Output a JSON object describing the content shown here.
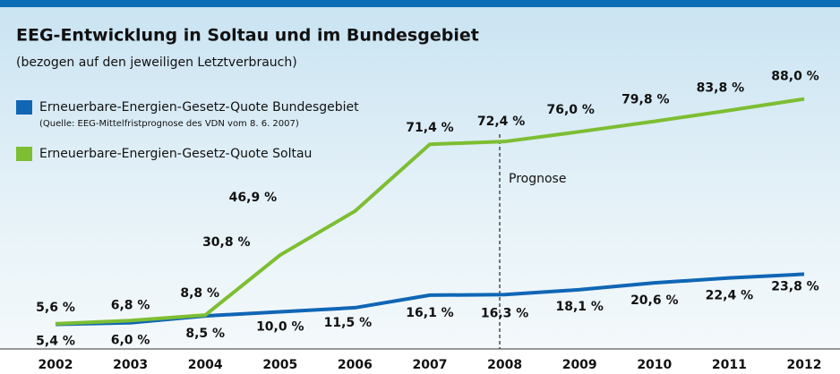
{
  "chart_data": {
    "type": "line",
    "title": "EEG-Entwicklung in Soltau und im Bundesgebiet",
    "subtitle": "(bezogen auf den jeweiligen Letztverbrauch)",
    "source": "(Quelle: EEG-Mittelfristprognose des VDN vom 8. 6. 2007)",
    "annotation": "Prognose",
    "categories": [
      "2002",
      "2003",
      "2004",
      "2005",
      "2006",
      "2007",
      "2008",
      "2009",
      "2010",
      "2011",
      "2012"
    ],
    "ylim": [
      0,
      100
    ],
    "series": [
      {
        "name": "Erneuerbare-Energien-Gesetz-Quote Bundesgebiet",
        "color": "#1066b5",
        "values": [
          5.4,
          6.0,
          8.5,
          10.0,
          11.5,
          16.1,
          16.3,
          18.1,
          20.6,
          22.4,
          23.8
        ],
        "value_labels": [
          "5,4 %",
          "6,0 %",
          "8,5 %",
          "10,0 %",
          "11,5 %",
          "16,1 %",
          "16,3 %",
          "18,1 %",
          "20,6 %",
          "22,4 %",
          "23,8 %"
        ]
      },
      {
        "name": "Erneuerbare-Energien-Gesetz-Quote Soltau",
        "color": "#7dbe32",
        "values": [
          5.6,
          6.8,
          8.8,
          30.8,
          46.9,
          71.4,
          72.4,
          76.0,
          79.8,
          83.8,
          88.0
        ],
        "value_labels": [
          "5,6 %",
          "6,8 %",
          "8,8 %",
          "30,8 %",
          "46,9 %",
          "71,4 %",
          "72,4 %",
          "76,0 %",
          "79,8 %",
          "83,8 %",
          "88,0 %"
        ]
      }
    ]
  }
}
